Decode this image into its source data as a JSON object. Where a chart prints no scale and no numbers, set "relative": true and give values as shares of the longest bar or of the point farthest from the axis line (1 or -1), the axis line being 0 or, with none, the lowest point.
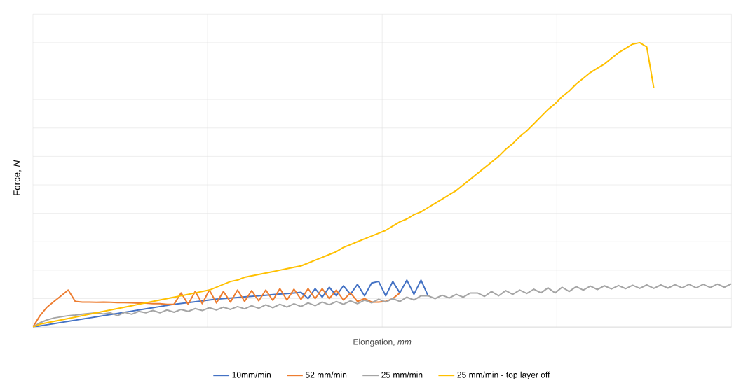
{
  "chart_data": {
    "type": "line",
    "relative": true,
    "xlabel": "Elongation, *mm*",
    "ylabel": "Force, *N*",
    "categories": [
      null,
      null,
      null,
      null,
      null,
      null,
      null,
      null,
      null,
      null,
      null,
      null,
      null,
      null,
      null,
      null,
      null,
      null,
      null,
      null,
      null,
      null,
      null,
      null,
      null,
      null,
      null,
      null,
      null,
      null,
      null,
      null,
      null,
      null,
      null,
      null,
      null,
      null,
      null,
      null,
      null,
      null,
      null,
      null,
      null,
      null,
      null,
      null,
      null,
      null,
      null,
      null,
      null,
      null,
      null,
      null,
      null,
      null,
      null,
      null,
      null,
      null,
      null,
      null,
      null,
      null,
      null,
      null,
      null,
      null,
      null,
      null,
      null,
      null,
      null,
      null,
      null,
      null,
      null,
      null,
      null,
      null,
      null,
      null,
      null,
      null,
      null,
      null,
      null,
      null,
      null,
      null,
      null,
      null,
      null,
      null,
      null,
      null,
      null,
      null
    ],
    "grid": true,
    "legend": "bottom",
    "marker": "none",
    "line_style": "solid",
    "series": [
      {
        "name": "10mm/min",
        "color": "#4472c4",
        "values": [
          0,
          0.004,
          0.008,
          0.012,
          0.016,
          0.02,
          0.024,
          0.028,
          0.032,
          0.036,
          0.04,
          0.044,
          0.048,
          0.052,
          0.056,
          0.06,
          0.064,
          0.068,
          0.072,
          0.076,
          0.08,
          0.083,
          0.086,
          0.089,
          0.092,
          0.095,
          0.098,
          0.1,
          0.102,
          0.104,
          0.106,
          0.108,
          0.11,
          0.112,
          0.114,
          0.116,
          0.118,
          0.12,
          0.122,
          0.1,
          0.135,
          0.105,
          0.14,
          0.11,
          0.145,
          0.115,
          0.15,
          0.11,
          0.155,
          0.16,
          0.11,
          0.16,
          0.12,
          0.165,
          0.115,
          0.165,
          0.11,
          null,
          null,
          null,
          null,
          null,
          null,
          null,
          null,
          null,
          null,
          null,
          null,
          null,
          null,
          null,
          null,
          null,
          null,
          null,
          null,
          null,
          null,
          null,
          null,
          null,
          null,
          null,
          null,
          null,
          null,
          null,
          null,
          null,
          null,
          null,
          null,
          null,
          null,
          null,
          null,
          null,
          null,
          null
        ]
      },
      {
        "name": "52 mm/min",
        "color": "#ed7d31",
        "values": [
          0,
          0.04,
          0.07,
          0.09,
          0.11,
          0.13,
          0.09,
          0.088,
          0.088,
          0.087,
          0.088,
          0.087,
          0.086,
          0.086,
          0.085,
          0.084,
          0.084,
          0.082,
          0.082,
          0.08,
          0.08,
          0.12,
          0.08,
          0.125,
          0.082,
          0.13,
          0.085,
          0.125,
          0.088,
          0.13,
          0.09,
          0.128,
          0.092,
          0.13,
          0.094,
          0.135,
          0.095,
          0.133,
          0.097,
          0.135,
          0.1,
          0.135,
          0.1,
          0.13,
          0.095,
          0.12,
          0.09,
          0.1,
          0.088,
          0.088,
          0.09,
          0.1,
          0.12,
          null,
          null,
          null,
          null,
          null,
          null,
          null,
          null,
          null,
          null,
          null,
          null,
          null,
          null,
          null,
          null,
          null,
          null,
          null,
          null,
          null,
          null,
          null,
          null,
          null,
          null,
          null,
          null,
          null,
          null,
          null,
          null,
          null,
          null,
          null,
          null,
          null,
          null,
          null,
          null,
          null,
          null,
          null,
          null,
          null,
          null,
          null
        ]
      },
      {
        "name": "25 mm/min",
        "color": "#a5a5a5",
        "values": [
          0,
          0.015,
          0.025,
          0.032,
          0.036,
          0.04,
          0.042,
          0.045,
          0.048,
          0.05,
          0.046,
          0.05,
          0.04,
          0.052,
          0.045,
          0.055,
          0.05,
          0.058,
          0.05,
          0.06,
          0.052,
          0.062,
          0.055,
          0.065,
          0.058,
          0.068,
          0.06,
          0.07,
          0.062,
          0.072,
          0.064,
          0.075,
          0.066,
          0.078,
          0.068,
          0.08,
          0.07,
          0.082,
          0.072,
          0.085,
          0.075,
          0.088,
          0.078,
          0.09,
          0.08,
          0.092,
          0.082,
          0.095,
          0.085,
          0.098,
          0.088,
          0.1,
          0.09,
          0.105,
          0.095,
          0.11,
          0.11,
          0.1,
          0.112,
          0.102,
          0.115,
          0.105,
          0.12,
          0.12,
          0.108,
          0.125,
          0.11,
          0.128,
          0.115,
          0.13,
          0.118,
          0.133,
          0.12,
          0.138,
          0.12,
          0.14,
          0.125,
          0.142,
          0.13,
          0.144,
          0.132,
          0.145,
          0.134,
          0.146,
          0.135,
          0.147,
          0.136,
          0.148,
          0.136,
          0.148,
          0.137,
          0.149,
          0.138,
          0.15,
          0.138,
          0.15,
          0.139,
          0.151,
          0.14,
          0.152
        ]
      },
      {
        "name": "25 mm/min - top layer off",
        "color": "#ffc000",
        "values": [
          0,
          0.01,
          0.015,
          0.02,
          0.025,
          0.03,
          0.035,
          0.04,
          0.045,
          0.05,
          0.055,
          0.06,
          0.065,
          0.07,
          0.075,
          0.08,
          0.085,
          0.09,
          0.095,
          0.1,
          0.105,
          0.11,
          0.115,
          0.12,
          0.125,
          0.13,
          0.14,
          0.15,
          0.16,
          0.165,
          0.175,
          0.18,
          0.185,
          0.19,
          0.195,
          0.2,
          0.205,
          0.21,
          0.215,
          0.225,
          0.235,
          0.245,
          0.255,
          0.265,
          0.28,
          0.29,
          0.3,
          0.31,
          0.32,
          0.33,
          0.34,
          0.355,
          0.37,
          0.38,
          0.395,
          0.405,
          0.42,
          0.435,
          0.45,
          0.465,
          0.48,
          0.5,
          0.52,
          0.54,
          0.56,
          0.58,
          0.6,
          0.625,
          0.645,
          0.67,
          0.69,
          0.715,
          0.74,
          0.765,
          0.785,
          0.81,
          0.83,
          0.855,
          0.875,
          0.895,
          0.91,
          0.925,
          0.945,
          0.965,
          0.98,
          0.995,
          1,
          0.985,
          0.84,
          null,
          null,
          null,
          null,
          null,
          null,
          null,
          null,
          null,
          null,
          null
        ]
      }
    ]
  }
}
